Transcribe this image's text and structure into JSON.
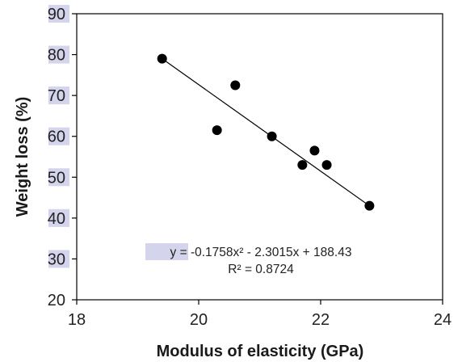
{
  "chart_data": {
    "type": "scatter",
    "xlabel": "Modulus of elasticity (GPa)",
    "ylabel": "Weight loss (%)",
    "xlim": [
      18,
      24
    ],
    "ylim": [
      20,
      90
    ],
    "x_ticks": [
      18,
      20,
      22,
      24
    ],
    "y_ticks": [
      20,
      30,
      40,
      50,
      60,
      70,
      80,
      90
    ],
    "grid": false,
    "points": [
      {
        "x": 19.4,
        "y": 79
      },
      {
        "x": 20.3,
        "y": 61.5
      },
      {
        "x": 20.6,
        "y": 72.5
      },
      {
        "x": 21.2,
        "y": 60
      },
      {
        "x": 21.7,
        "y": 53
      },
      {
        "x": 21.9,
        "y": 56.5
      },
      {
        "x": 22.1,
        "y": 53
      },
      {
        "x": 22.8,
        "y": 43
      }
    ],
    "trendline": {
      "type": "polynomial",
      "coefficients": [
        -0.1758,
        -2.3015,
        188.43
      ],
      "x_range": [
        19.4,
        22.8
      ],
      "equation": "y = -0.1758x² - 2.3015x + 188.43",
      "r_squared": "R² = 0.8724"
    },
    "colors": {
      "marker": "#000000",
      "trendline": "#000000",
      "tick_label_highlight": "#d4d4ec"
    }
  }
}
